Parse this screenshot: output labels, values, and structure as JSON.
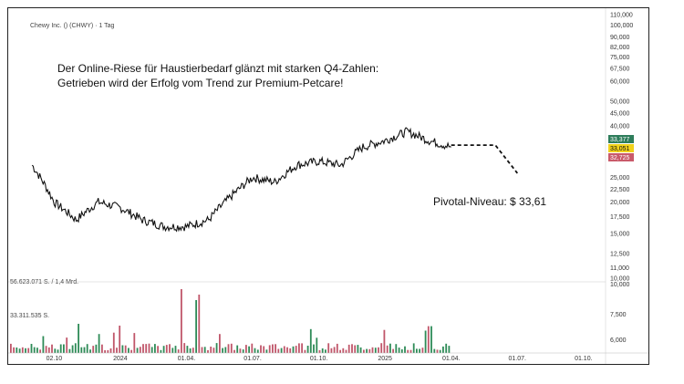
{
  "instrument": "Chewy Inc. () (CHWY) · 1 Tag",
  "headline": {
    "line1": "Der Online-Riese für Haustierbedarf glänzt mit starken Q4-Zahlen:",
    "line2": "Getrieben wird der Erfolg vom Trend zur Premium-Petcare!"
  },
  "pivot_label": "Pivotal-Niveau: $ 33,61",
  "volume_labels": {
    "top": "56.623.071 S. / 1,4 Mrd.",
    "mid": "33.311.535 S."
  },
  "price_tags": [
    {
      "value": "33,377",
      "color": "#2e7d5b"
    },
    {
      "value": "33,051",
      "color": "#f1d21b"
    },
    {
      "value": "32,725",
      "color": "#c95a6a"
    }
  ],
  "colors": {
    "up": "#2e8b57",
    "down": "#c0566a",
    "price": "#111111"
  },
  "chart_data": {
    "type": "line",
    "title": "Chewy Inc. () (CHWY) · 1 Tag",
    "y_scale": "log",
    "y_ticks": [
      "110,000",
      "100,000",
      "90,000",
      "82,000",
      "75,000",
      "67,500",
      "60,000",
      "50,000",
      "45,000",
      "40,000",
      "30,000",
      "25,000",
      "22,500",
      "20,000",
      "17,500",
      "15,000",
      "12,500",
      "11,000",
      "10,000"
    ],
    "y_tick_values": [
      110,
      100,
      90,
      82,
      75,
      67.5,
      60,
      50,
      45,
      40,
      30,
      25,
      22.5,
      20,
      17.5,
      15,
      12.5,
      11,
      10
    ],
    "x_ticks": [
      "02.10",
      "2024",
      "01.04.",
      "01.07.",
      "01.10.",
      "2025",
      "01.04.",
      "01.07.",
      "01.10."
    ],
    "ylim": [
      10,
      113
    ],
    "series": [
      {
        "x": [
          "2023-09",
          "2023-10",
          "2023-11",
          "2023-12",
          "2024-01",
          "2024-02",
          "2024-03",
          "2024-04",
          "2024-05",
          "2024-06",
          "2024-07",
          "2024-08",
          "2024-09",
          "2024-10",
          "2024-11",
          "2024-12",
          "2025-01",
          "2025-02",
          "2025-03",
          "2025-04"
        ],
        "values": [
          28,
          20,
          17,
          20,
          19,
          17,
          16,
          16,
          17,
          21,
          25,
          24,
          28,
          29,
          28,
          33,
          35,
          38,
          35,
          33
        ]
      }
    ],
    "projection": {
      "x": [
        "2025-04",
        "2025-06",
        "2025-07"
      ],
      "values": [
        33.6,
        33.6,
        26
      ]
    },
    "volume_ticks": [
      "10,000",
      "7,500",
      "6,000"
    ],
    "grid": false,
    "legend": "none"
  }
}
